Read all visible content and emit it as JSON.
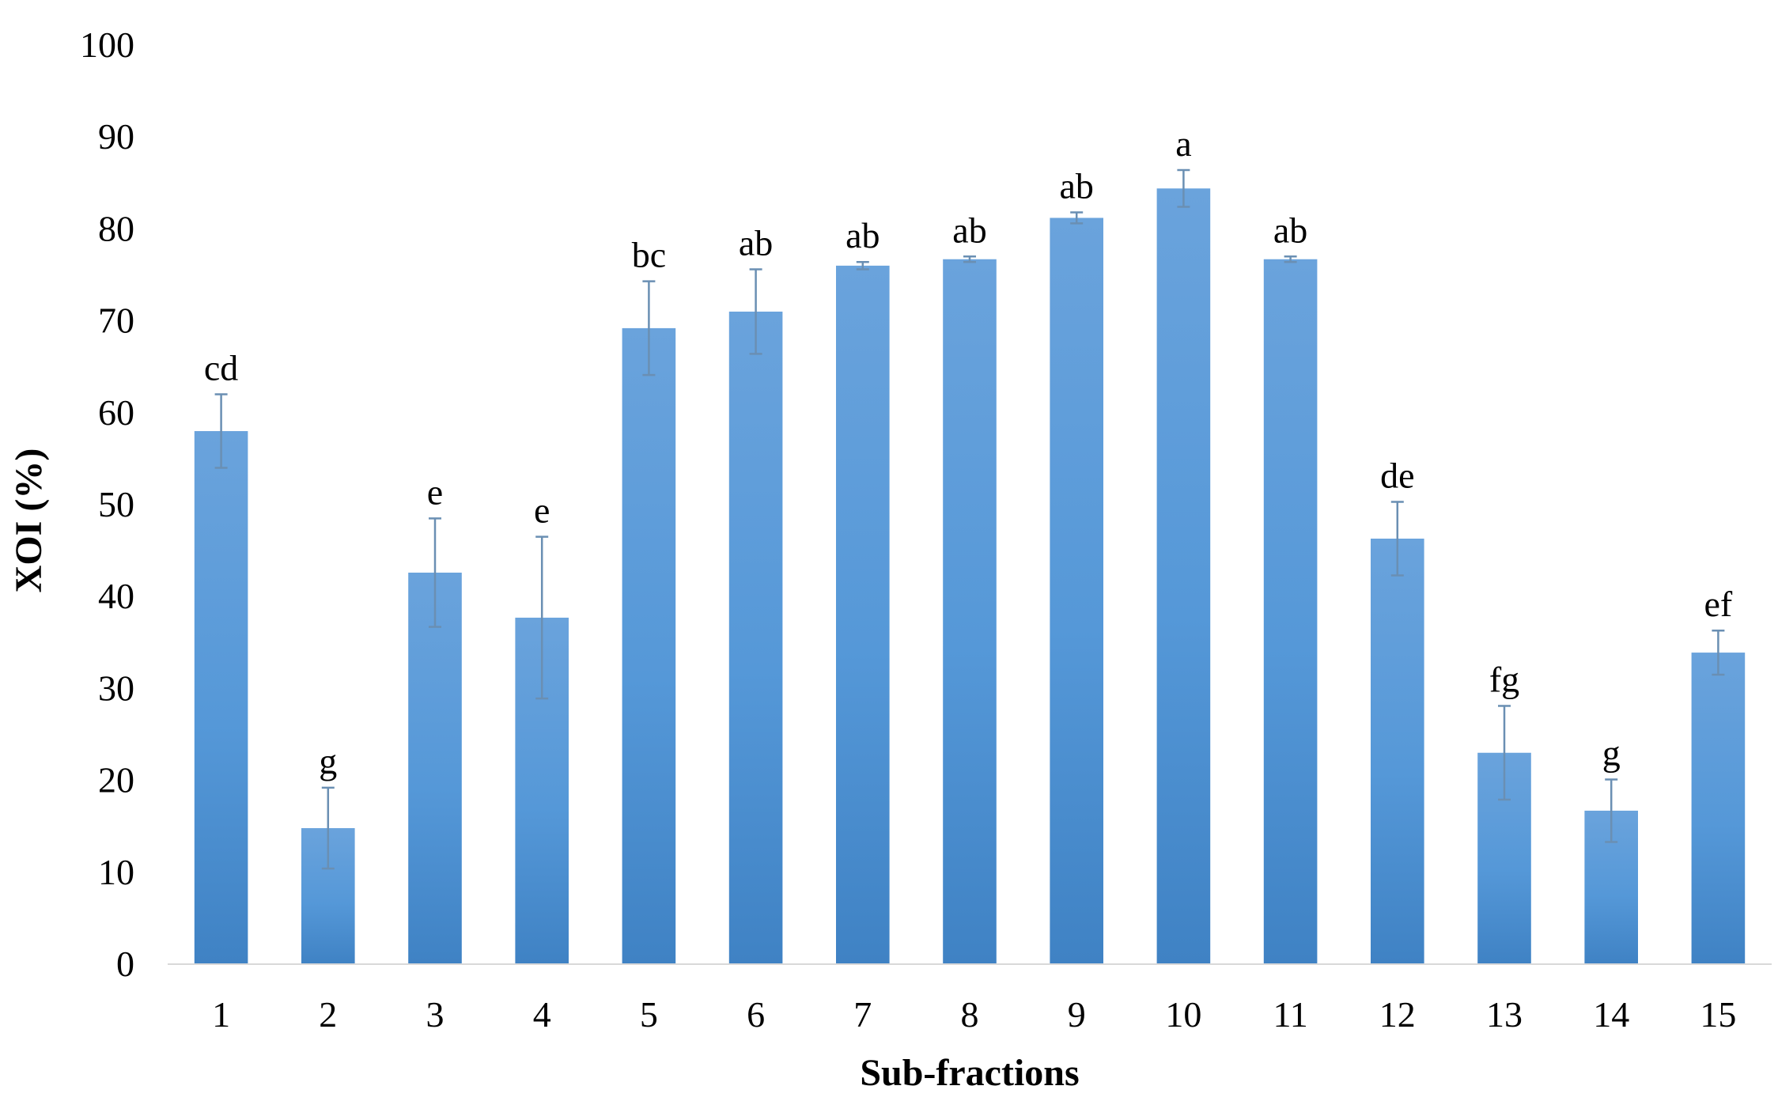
{
  "chart_data": {
    "type": "bar",
    "title": "",
    "xlabel": "Sub-fractions",
    "ylabel": "XOI (%)",
    "ylim": [
      0,
      100
    ],
    "yticks": [
      "0",
      "10",
      "20",
      "30",
      "40",
      "50",
      "60",
      "70",
      "80",
      "90",
      "100"
    ],
    "grid": false,
    "legend": "none",
    "bar_color": "#5b9bd5",
    "categories": [
      "1",
      "2",
      "3",
      "4",
      "5",
      "6",
      "7",
      "8",
      "9",
      "10",
      "11",
      "12",
      "13",
      "14",
      "15"
    ],
    "values": [
      58,
      14.8,
      42.6,
      37.7,
      69.2,
      71,
      76,
      76.7,
      81.2,
      84.4,
      76.7,
      46.3,
      23,
      16.7,
      33.9
    ],
    "errors": [
      4,
      4.4,
      5.9,
      8.8,
      5.1,
      4.6,
      0.4,
      0.3,
      0.6,
      2,
      0.3,
      4,
      5.1,
      3.4,
      2.4
    ],
    "significance_labels": [
      "cd",
      "g",
      "e",
      "e",
      "bc",
      "ab",
      "ab",
      "ab",
      "ab",
      "a",
      "ab",
      "de",
      "fg",
      "g",
      "ef"
    ]
  }
}
